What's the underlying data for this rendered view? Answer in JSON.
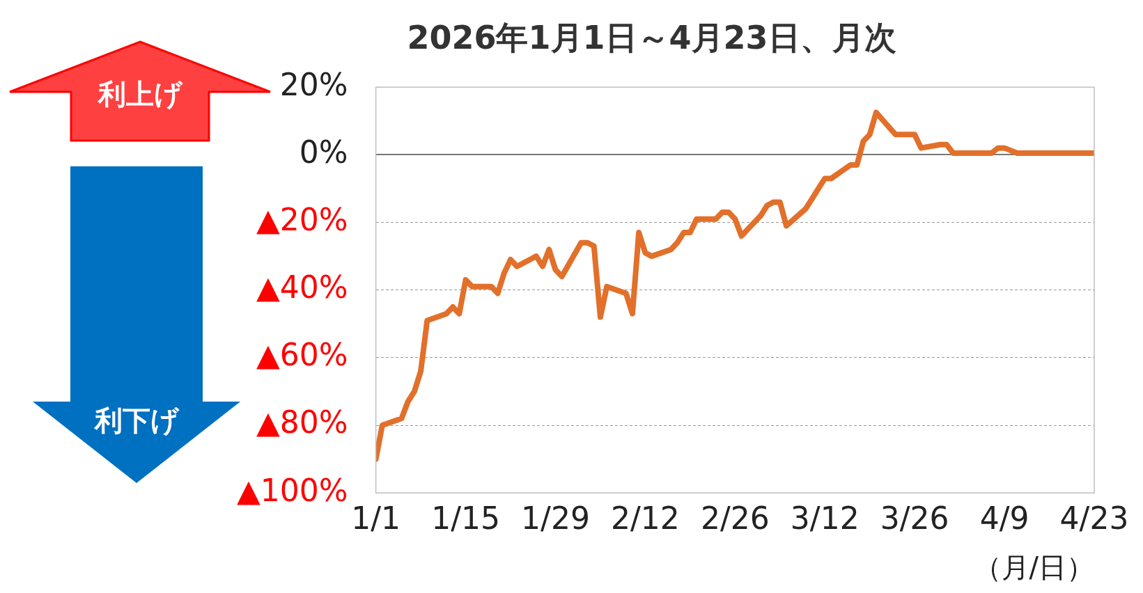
{
  "chart_data": {
    "type": "line",
    "title": "2026年1月1日～4月23日、月次",
    "xlabel": "（月/日）",
    "annotations": [
      "利上げ",
      "利下げ"
    ],
    "x": [
      "2026-01-01",
      "2026-01-02",
      "2026-01-05",
      "2026-01-06",
      "2026-01-07",
      "2026-01-08",
      "2026-01-09",
      "2026-01-12",
      "2026-01-13",
      "2026-01-14",
      "2026-01-15",
      "2026-01-16",
      "2026-01-19",
      "2026-01-20",
      "2026-01-21",
      "2026-01-22",
      "2026-01-23",
      "2026-01-26",
      "2026-01-27",
      "2026-01-28",
      "2026-01-29",
      "2026-01-30",
      "2026-02-02",
      "2026-02-03",
      "2026-02-04",
      "2026-02-05",
      "2026-02-06",
      "2026-02-09",
      "2026-02-10",
      "2026-02-11",
      "2026-02-12",
      "2026-02-13",
      "2026-02-16",
      "2026-02-17",
      "2026-02-18",
      "2026-02-19",
      "2026-02-20",
      "2026-02-23",
      "2026-02-24",
      "2026-02-25",
      "2026-02-26",
      "2026-02-27",
      "2026-03-02",
      "2026-03-03",
      "2026-03-04",
      "2026-03-05",
      "2026-03-06",
      "2026-03-09",
      "2026-03-10",
      "2026-03-11",
      "2026-03-12",
      "2026-03-13",
      "2026-03-16",
      "2026-03-17",
      "2026-03-18",
      "2026-03-19",
      "2026-03-20",
      "2026-03-23",
      "2026-03-26",
      "2026-03-27",
      "2026-03-30",
      "2026-03-31",
      "2026-04-01",
      "2026-04-07",
      "2026-04-08",
      "2026-04-09",
      "2026-04-11",
      "2026-04-23"
    ],
    "series": [
      {
        "color": "#e2702a",
        "values": [
          -90,
          -80,
          -78,
          -73,
          -70,
          -64,
          -49,
          -47,
          -45,
          -47,
          -37,
          -39,
          -39,
          -41,
          -35,
          -31,
          -33,
          -30,
          -33,
          -28,
          -34,
          -36,
          -26,
          -26,
          -27,
          -48,
          -39,
          -41,
          -47,
          -23,
          -29,
          -30,
          -28,
          -26,
          -23,
          -23,
          -19,
          -19,
          -17,
          -17,
          -19,
          -24,
          -18,
          -15,
          -14,
          -14,
          -21,
          -16,
          -13,
          -10,
          -7,
          -7,
          -3,
          -3,
          4,
          6,
          12.5,
          6,
          6,
          2,
          3,
          3,
          0.5,
          0.5,
          2,
          2,
          0.5,
          0.5
        ]
      }
    ],
    "xlim": [
      "2026-01-01",
      "2026-04-23"
    ],
    "xticks": [
      {
        "value": "2026-01-01",
        "label": "1/1"
      },
      {
        "value": "2026-01-15",
        "label": "1/15"
      },
      {
        "value": "2026-01-29",
        "label": "1/29"
      },
      {
        "value": "2026-02-12",
        "label": "2/12"
      },
      {
        "value": "2026-02-26",
        "label": "2/26"
      },
      {
        "value": "2026-03-12",
        "label": "3/12"
      },
      {
        "value": "2026-03-26",
        "label": "3/26"
      },
      {
        "value": "2026-04-09",
        "label": "4/9"
      },
      {
        "value": "2026-04-23",
        "label": "4/23"
      }
    ],
    "ylim": [
      -100,
      20
    ],
    "yticks": [
      {
        "value": -100,
        "label": "▲100%"
      },
      {
        "value": -80,
        "label": "▲80%"
      },
      {
        "value": -60,
        "label": "▲60%"
      },
      {
        "value": -40,
        "label": "▲40%"
      },
      {
        "value": -20,
        "label": "▲20%"
      },
      {
        "value": 0,
        "label": "0%"
      },
      {
        "value": 20,
        "label": "20%"
      }
    ],
    "grid": "y",
    "legend": false,
    "marker": "none",
    "line_style": "solid"
  }
}
